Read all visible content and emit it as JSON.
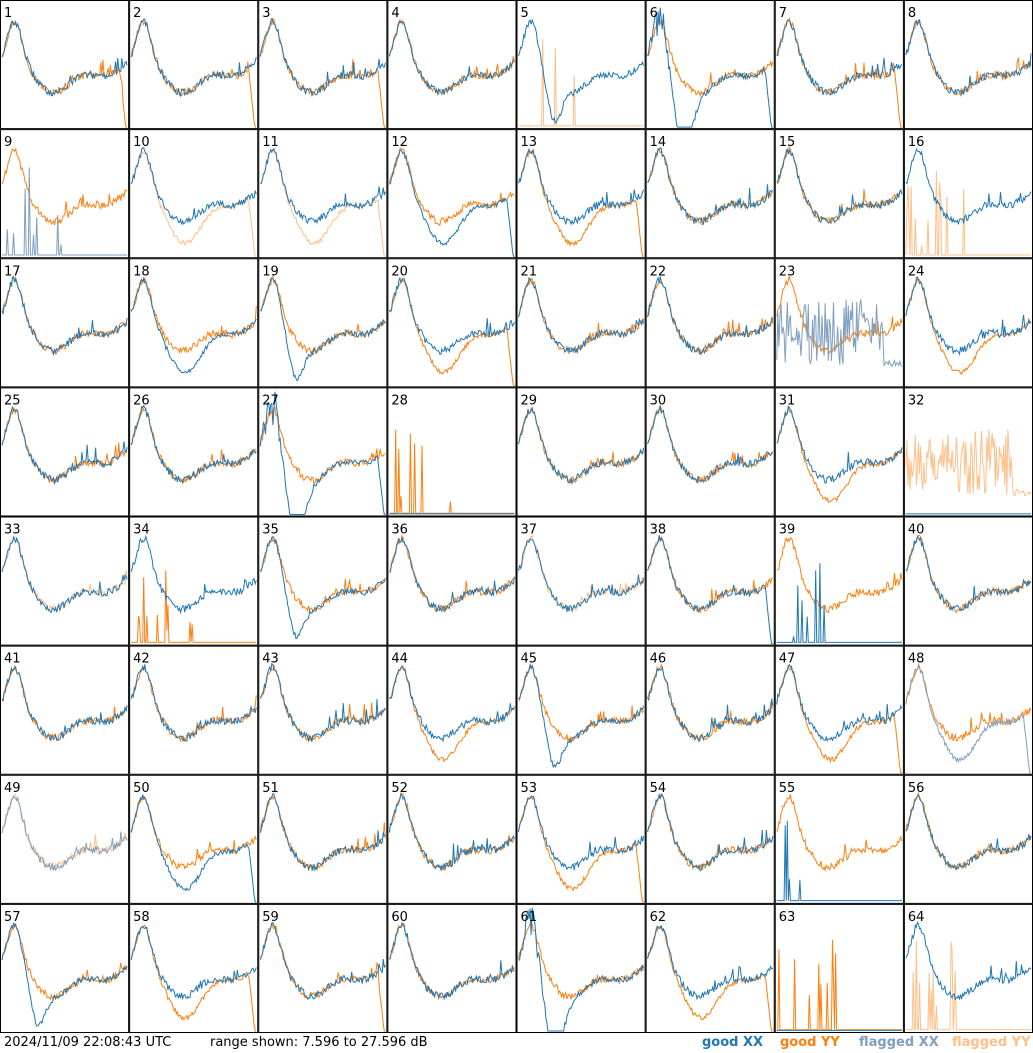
{
  "chart_data": {
    "type": "line",
    "grid": {
      "rows": 8,
      "cols": 8
    },
    "panels": [
      {
        "label": "1",
        "xx": "good",
        "yy": "good",
        "xx_shape": "hump",
        "yy_shape": "hump",
        "yy_tail": true
      },
      {
        "label": "2",
        "xx": "good",
        "yy": "good",
        "xx_shape": "hump",
        "yy_shape": "hump",
        "yy_tail": true
      },
      {
        "label": "3",
        "xx": "good",
        "yy": "good",
        "xx_shape": "hump",
        "yy_shape": "hump",
        "yy_tail": true
      },
      {
        "label": "4",
        "xx": "good",
        "yy": "good",
        "xx_shape": "hump",
        "yy_shape": "hump"
      },
      {
        "label": "5",
        "xx": "good",
        "yy": "flagged",
        "xx_shape": "dip",
        "yy_shape": "spikes_low"
      },
      {
        "label": "6",
        "xx": "good",
        "yy": "good",
        "xx_shape": "deep",
        "yy_shape": "hump",
        "xx_tail": true
      },
      {
        "label": "7",
        "xx": "good",
        "yy": "good",
        "xx_shape": "hump",
        "yy_shape": "hump",
        "yy_tail": true
      },
      {
        "label": "8",
        "xx": "good",
        "yy": "good",
        "xx_shape": "hump",
        "yy_shape": "hump"
      },
      {
        "label": "9",
        "xx": "flagged",
        "yy": "good",
        "xx_shape": "spikes_low",
        "yy_shape": "hump"
      },
      {
        "label": "10",
        "xx": "good",
        "yy": "flagged",
        "xx_shape": "hump",
        "yy_shape": "sag",
        "yy_tail": true
      },
      {
        "label": "11",
        "xx": "good",
        "yy": "flagged",
        "xx_shape": "hump",
        "yy_shape": "sag",
        "yy_tail": true
      },
      {
        "label": "12",
        "xx": "good",
        "yy": "good",
        "xx_shape": "sag",
        "yy_shape": "hump",
        "xx_tail": true
      },
      {
        "label": "13",
        "xx": "good",
        "yy": "good",
        "xx_shape": "hump",
        "yy_shape": "sag",
        "yy_tail": true
      },
      {
        "label": "14",
        "xx": "good",
        "yy": "good",
        "xx_shape": "hump",
        "yy_shape": "hump"
      },
      {
        "label": "15",
        "xx": "good",
        "yy": "good",
        "xx_shape": "hump",
        "yy_shape": "hump"
      },
      {
        "label": "16",
        "xx": "good",
        "yy": "flagged",
        "xx_shape": "hump",
        "yy_shape": "spikes_low"
      },
      {
        "label": "17",
        "xx": "good",
        "yy": "good",
        "xx_shape": "hump",
        "yy_shape": "hump"
      },
      {
        "label": "18",
        "xx": "good",
        "yy": "good",
        "xx_shape": "sag",
        "yy_shape": "hump"
      },
      {
        "label": "19",
        "xx": "good",
        "yy": "good",
        "xx_shape": "dip",
        "yy_shape": "hump"
      },
      {
        "label": "20",
        "xx": "good",
        "yy": "good",
        "xx_shape": "hump",
        "yy_shape": "sag",
        "yy_tail": true
      },
      {
        "label": "21",
        "xx": "good",
        "yy": "good",
        "xx_shape": "hump",
        "yy_shape": "hump"
      },
      {
        "label": "22",
        "xx": "good",
        "yy": "good",
        "xx_shape": "hump",
        "yy_shape": "hump"
      },
      {
        "label": "23",
        "xx": "flagged",
        "yy": "good",
        "xx_shape": "noisy",
        "yy_shape": "hump"
      },
      {
        "label": "24",
        "xx": "good",
        "yy": "good",
        "xx_shape": "hump",
        "yy_shape": "sag"
      },
      {
        "label": "25",
        "xx": "good",
        "yy": "good",
        "xx_shape": "hump",
        "yy_shape": "hump"
      },
      {
        "label": "26",
        "xx": "good",
        "yy": "good",
        "xx_shape": "hump",
        "yy_shape": "hump"
      },
      {
        "label": "27",
        "xx": "good",
        "yy": "good",
        "xx_shape": "deep",
        "yy_shape": "hump",
        "xx_tail": true
      },
      {
        "label": "28",
        "xx": "good",
        "yy": "good",
        "xx_shape": "flat_low",
        "yy_shape": "spikes_low"
      },
      {
        "label": "29",
        "xx": "good",
        "yy": "good",
        "xx_shape": "hump",
        "yy_shape": "hump"
      },
      {
        "label": "30",
        "xx": "good",
        "yy": "good",
        "xx_shape": "hump",
        "yy_shape": "hump"
      },
      {
        "label": "31",
        "xx": "good",
        "yy": "good",
        "xx_shape": "hump",
        "yy_shape": "sag"
      },
      {
        "label": "32",
        "xx": "good",
        "yy": "flagged",
        "xx_shape": "flat_low",
        "yy_shape": "noisy"
      },
      {
        "label": "33",
        "xx": "good",
        "yy": "flagged",
        "xx_shape": "hump",
        "yy_shape": "hump"
      },
      {
        "label": "34",
        "xx": "good",
        "yy": "good",
        "xx_shape": "hump",
        "yy_shape": "spikes_low"
      },
      {
        "label": "35",
        "xx": "good",
        "yy": "good",
        "xx_shape": "dip",
        "yy_shape": "hump"
      },
      {
        "label": "36",
        "xx": "good",
        "yy": "good",
        "xx_shape": "hump",
        "yy_shape": "hump"
      },
      {
        "label": "37",
        "xx": "good",
        "yy": "flagged",
        "xx_shape": "hump",
        "yy_shape": "hump"
      },
      {
        "label": "38",
        "xx": "good",
        "yy": "good",
        "xx_shape": "hump",
        "yy_shape": "hump",
        "xx_tail": true
      },
      {
        "label": "39",
        "xx": "good",
        "yy": "good",
        "xx_shape": "spikes_low",
        "yy_shape": "hump"
      },
      {
        "label": "40",
        "xx": "good",
        "yy": "good",
        "xx_shape": "hump",
        "yy_shape": "hump"
      },
      {
        "label": "41",
        "xx": "good",
        "yy": "good",
        "xx_shape": "hump",
        "yy_shape": "hump"
      },
      {
        "label": "42",
        "xx": "good",
        "yy": "good",
        "xx_shape": "hump",
        "yy_shape": "hump"
      },
      {
        "label": "43",
        "xx": "good",
        "yy": "good",
        "xx_shape": "hump",
        "yy_shape": "hump"
      },
      {
        "label": "44",
        "xx": "good",
        "yy": "good",
        "xx_shape": "hump",
        "yy_shape": "sag"
      },
      {
        "label": "45",
        "xx": "good",
        "yy": "good",
        "xx_shape": "dip",
        "yy_shape": "hump"
      },
      {
        "label": "46",
        "xx": "good",
        "yy": "good",
        "xx_shape": "hump",
        "yy_shape": "hump"
      },
      {
        "label": "47",
        "xx": "good",
        "yy": "good",
        "xx_shape": "hump",
        "yy_shape": "sag",
        "yy_tail": true
      },
      {
        "label": "48",
        "xx": "flagged",
        "yy": "good",
        "xx_shape": "sag",
        "yy_shape": "hump",
        "xx_tail": true
      },
      {
        "label": "49",
        "xx": "flagged",
        "yy": "flagged",
        "xx_shape": "hump",
        "yy_shape": "hump"
      },
      {
        "label": "50",
        "xx": "good",
        "yy": "good",
        "xx_shape": "sag",
        "yy_shape": "hump",
        "xx_tail": true
      },
      {
        "label": "51",
        "xx": "good",
        "yy": "good",
        "xx_shape": "hump",
        "yy_shape": "hump"
      },
      {
        "label": "52",
        "xx": "good",
        "yy": "good",
        "xx_shape": "hump",
        "yy_shape": "hump"
      },
      {
        "label": "53",
        "xx": "good",
        "yy": "good",
        "xx_shape": "hump",
        "yy_shape": "sag",
        "yy_tail": true
      },
      {
        "label": "54",
        "xx": "good",
        "yy": "good",
        "xx_shape": "hump",
        "yy_shape": "hump"
      },
      {
        "label": "55",
        "xx": "good",
        "yy": "good",
        "xx_shape": "spikes_low",
        "yy_shape": "hump"
      },
      {
        "label": "56",
        "xx": "good",
        "yy": "good",
        "xx_shape": "hump",
        "yy_shape": "hump"
      },
      {
        "label": "57",
        "xx": "good",
        "yy": "good",
        "xx_shape": "dip",
        "yy_shape": "hump"
      },
      {
        "label": "58",
        "xx": "good",
        "yy": "good",
        "xx_shape": "hump",
        "yy_shape": "sag",
        "yy_tail": true
      },
      {
        "label": "59",
        "xx": "good",
        "yy": "good",
        "xx_shape": "hump",
        "yy_shape": "hump",
        "yy_tail": true
      },
      {
        "label": "60",
        "xx": "good",
        "yy": "good",
        "xx_shape": "hump",
        "yy_shape": "hump"
      },
      {
        "label": "61",
        "xx": "good",
        "yy": "good",
        "xx_shape": "deep",
        "yy_shape": "hump"
      },
      {
        "label": "62",
        "xx": "good",
        "yy": "good",
        "xx_shape": "hump",
        "yy_shape": "sag",
        "yy_tail": true
      },
      {
        "label": "63",
        "xx": "good",
        "yy": "good",
        "xx_shape": "flat_low",
        "yy_shape": "spikes_low"
      },
      {
        "label": "64",
        "xx": "good",
        "yy": "flagged",
        "xx_shape": "hump",
        "yy_shape": "spikes_low"
      }
    ],
    "legend": [
      {
        "label": "good XX",
        "color": "#1f77b4"
      },
      {
        "label": "good YY",
        "color": "#ff7f0e"
      },
      {
        "label": "flagged XX",
        "color": "#7f9fbf"
      },
      {
        "label": "flagged YY",
        "color": "#ffbf87"
      }
    ]
  },
  "footer": {
    "timestamp": "2024/11/09 22:08:43 UTC",
    "range": "range shown: 7.596 to 27.596 dB"
  }
}
